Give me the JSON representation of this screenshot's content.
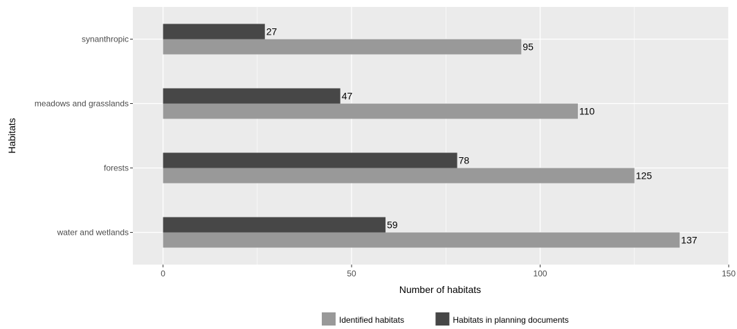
{
  "colors": {
    "panel_background": "#ebebeb",
    "gridline": "#ffffff",
    "axis_text": "#4d4d4d",
    "title_text": "#000000",
    "bar_label_text": "#000000"
  },
  "chart_data": {
    "type": "bar",
    "orientation": "horizontal",
    "title": "",
    "xlabel": "Number of habitats",
    "ylabel": "Habitats",
    "categories": [
      "water and wetlands",
      "forests",
      "meadows and grasslands",
      "synanthropic"
    ],
    "series": [
      {
        "name": "Identified habitats",
        "color": "#999999",
        "values": [
          137,
          125,
          110,
          95
        ]
      },
      {
        "name": "Habitats in planning documents",
        "color": "#474747",
        "values": [
          59,
          78,
          47,
          27
        ]
      }
    ],
    "xlim": [
      -8,
      150
    ],
    "x_ticks": [
      0,
      50,
      100,
      150
    ],
    "grid": true,
    "data_labels": true,
    "legend_position": "bottom"
  }
}
